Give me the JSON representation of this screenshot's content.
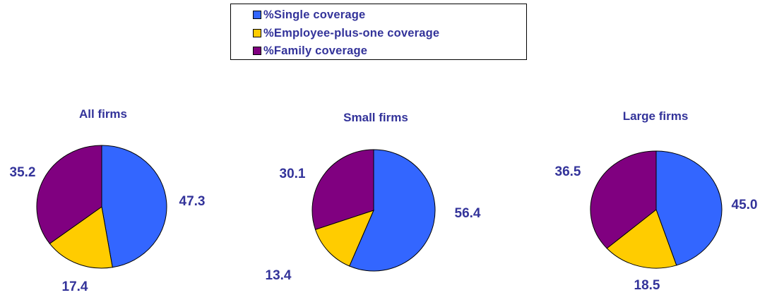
{
  "chart_data": {
    "type": "pie",
    "legend": {
      "placement": "top-center",
      "entries": [
        {
          "label": "%Single coverage",
          "color": "#3366ff"
        },
        {
          "label": "%Employee-plus-one coverage",
          "color": "#ffcc00"
        },
        {
          "label": "%Family coverage",
          "color": "#800080"
        }
      ]
    },
    "text_color": "#33339a",
    "charts": [
      {
        "title": "All firms",
        "values": [
          47.3,
          17.4,
          35.2
        ],
        "labels": [
          "47.3",
          "17.4",
          "35.2"
        ]
      },
      {
        "title": "Small firms",
        "values": [
          56.4,
          13.4,
          30.1
        ],
        "labels": [
          "56.4",
          "13.4",
          "30.1"
        ]
      },
      {
        "title": "Large firms",
        "values": [
          45.0,
          18.5,
          36.5
        ],
        "labels": [
          "45.0",
          "18.5",
          "36.5"
        ]
      }
    ]
  }
}
